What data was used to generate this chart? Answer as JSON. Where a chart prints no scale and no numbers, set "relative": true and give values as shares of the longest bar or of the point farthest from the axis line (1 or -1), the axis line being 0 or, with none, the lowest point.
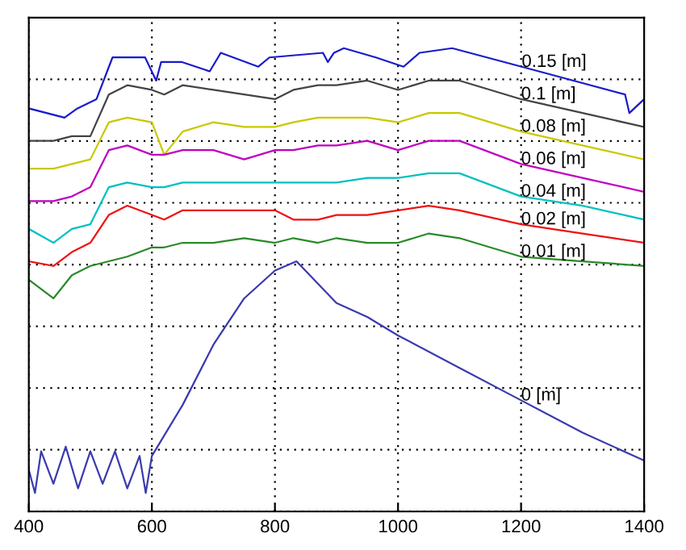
{
  "chart_data": {
    "type": "line",
    "relative": true,
    "grid": true,
    "tick_labels": "x",
    "line_style": "solid",
    "marker": "none",
    "xlim": [
      400,
      1400
    ],
    "xticks": [
      400,
      600,
      800,
      1000,
      1200,
      1400
    ],
    "series": [
      {
        "name": "0.15 [m]",
        "color": "#1a1acc",
        "x": [
          400,
          458,
          479,
          510,
          536,
          563,
          589,
          607,
          615,
          649,
          694,
          712,
          773,
          791,
          878,
          886,
          896,
          912,
          964,
          1009,
          1035,
          1088,
          1201,
          1369,
          1376,
          1400
        ],
        "values": [
          0.87,
          0.85,
          0.87,
          0.89,
          0.98,
          0.98,
          0.98,
          0.93,
          0.97,
          0.97,
          0.95,
          0.99,
          0.96,
          0.98,
          0.99,
          0.97,
          0.99,
          1.0,
          0.98,
          0.96,
          0.99,
          1.0,
          0.96,
          0.9,
          0.86,
          0.89
        ]
      },
      {
        "name": "0.1 [m]",
        "color": "#444444",
        "x": [
          400,
          440,
          470,
          500,
          530,
          560,
          600,
          620,
          650,
          700,
          750,
          800,
          830,
          870,
          900,
          950,
          1000,
          1050,
          1100,
          1200,
          1300,
          1400
        ],
        "values": [
          0.8,
          0.8,
          0.81,
          0.81,
          0.9,
          0.92,
          0.91,
          0.9,
          0.92,
          0.91,
          0.9,
          0.89,
          0.91,
          0.92,
          0.92,
          0.93,
          0.91,
          0.93,
          0.93,
          0.89,
          0.86,
          0.83
        ]
      },
      {
        "name": "0.08 [m]",
        "color": "#c8c800",
        "x": [
          400,
          440,
          470,
          500,
          530,
          560,
          600,
          620,
          650,
          700,
          750,
          800,
          830,
          870,
          900,
          950,
          1000,
          1050,
          1100,
          1200,
          1300,
          1400
        ],
        "values": [
          0.74,
          0.74,
          0.75,
          0.76,
          0.84,
          0.85,
          0.84,
          0.77,
          0.82,
          0.84,
          0.83,
          0.83,
          0.84,
          0.85,
          0.85,
          0.85,
          0.84,
          0.86,
          0.86,
          0.82,
          0.79,
          0.76
        ]
      },
      {
        "name": "0.06 [m]",
        "color": "#c000c0",
        "x": [
          400,
          440,
          470,
          500,
          530,
          560,
          600,
          620,
          650,
          700,
          750,
          800,
          830,
          870,
          900,
          950,
          1000,
          1050,
          1100,
          1200,
          1300,
          1400
        ],
        "values": [
          0.67,
          0.67,
          0.68,
          0.7,
          0.78,
          0.79,
          0.77,
          0.77,
          0.78,
          0.78,
          0.76,
          0.78,
          0.78,
          0.79,
          0.79,
          0.8,
          0.78,
          0.8,
          0.8,
          0.75,
          0.72,
          0.69
        ]
      },
      {
        "name": "0.04 [m]",
        "color": "#00c0c0",
        "x": [
          400,
          440,
          470,
          500,
          530,
          560,
          600,
          620,
          650,
          700,
          750,
          800,
          830,
          870,
          900,
          950,
          1000,
          1050,
          1100,
          1200,
          1300,
          1400
        ],
        "values": [
          0.61,
          0.58,
          0.61,
          0.62,
          0.7,
          0.71,
          0.7,
          0.7,
          0.71,
          0.71,
          0.71,
          0.71,
          0.71,
          0.71,
          0.71,
          0.72,
          0.72,
          0.73,
          0.73,
          0.68,
          0.66,
          0.63
        ]
      },
      {
        "name": "0.02 [m]",
        "color": "#ee1111",
        "x": [
          400,
          440,
          470,
          500,
          530,
          560,
          600,
          620,
          650,
          700,
          750,
          800,
          830,
          870,
          900,
          950,
          1000,
          1050,
          1100,
          1200,
          1300,
          1400
        ],
        "values": [
          0.54,
          0.53,
          0.56,
          0.58,
          0.64,
          0.66,
          0.64,
          0.63,
          0.65,
          0.65,
          0.65,
          0.65,
          0.63,
          0.63,
          0.64,
          0.64,
          0.65,
          0.66,
          0.65,
          0.62,
          0.6,
          0.58
        ]
      },
      {
        "name": "0.01 [m]",
        "color": "#2a8a2a",
        "x": [
          400,
          440,
          470,
          500,
          530,
          560,
          600,
          620,
          650,
          700,
          750,
          800,
          830,
          870,
          900,
          950,
          1000,
          1050,
          1100,
          1200,
          1300,
          1400
        ],
        "values": [
          0.5,
          0.46,
          0.51,
          0.53,
          0.54,
          0.55,
          0.57,
          0.57,
          0.58,
          0.58,
          0.59,
          0.58,
          0.59,
          0.58,
          0.59,
          0.58,
          0.58,
          0.6,
          0.59,
          0.55,
          0.54,
          0.53
        ]
      },
      {
        "name": "0 [m]",
        "color": "#3a3ab0",
        "x": [
          400,
          410,
          420,
          440,
          460,
          480,
          500,
          520,
          540,
          560,
          580,
          590,
          600,
          650,
          700,
          750,
          800,
          835,
          900,
          950,
          1000,
          1100,
          1200,
          1300,
          1400
        ],
        "values": [
          0.09,
          0.04,
          0.13,
          0.06,
          0.14,
          0.05,
          0.13,
          0.06,
          0.13,
          0.05,
          0.12,
          0.04,
          0.12,
          0.23,
          0.36,
          0.46,
          0.52,
          0.54,
          0.45,
          0.42,
          0.38,
          0.31,
          0.24,
          0.17,
          0.11
        ]
      }
    ]
  }
}
